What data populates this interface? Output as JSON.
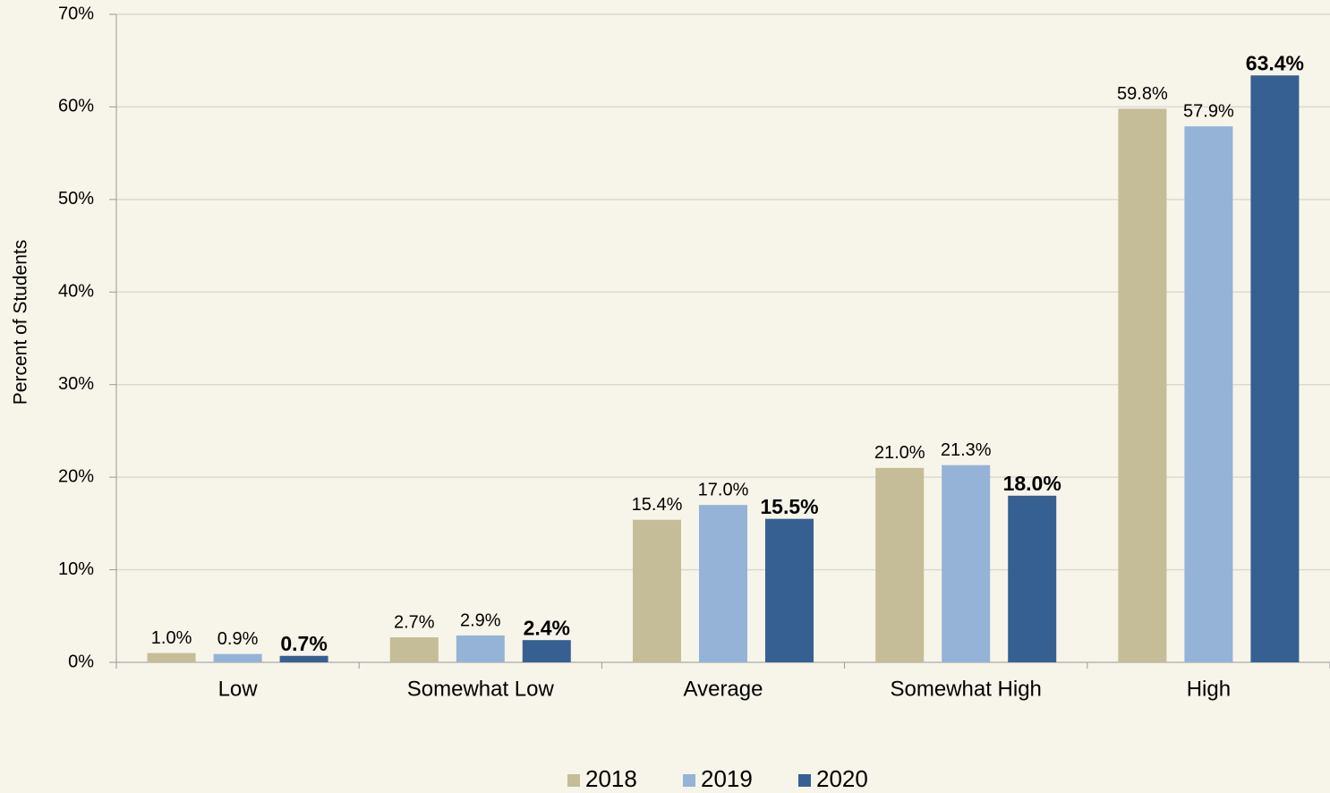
{
  "chart_data": {
    "type": "bar",
    "y_label": "Percent of Students",
    "categories": [
      "Low",
      "Somewhat Low",
      "Average",
      "Somewhat High",
      "High"
    ],
    "series": [
      {
        "name": "2018",
        "color": "#c4bd97",
        "values": [
          1.0,
          2.7,
          15.4,
          21.0,
          59.8
        ],
        "value_labels": [
          "1.0%",
          "2.7%",
          "15.4%",
          "21.0%",
          "59.8%"
        ]
      },
      {
        "name": "2019",
        "color": "#95b3d7",
        "values": [
          0.9,
          2.9,
          17.0,
          21.3,
          57.9
        ],
        "value_labels": [
          "0.9%",
          "2.9%",
          "17.0%",
          "21.3%",
          "57.9%"
        ]
      },
      {
        "name": "2020",
        "color": "#366092",
        "values": [
          0.7,
          2.4,
          15.5,
          18.0,
          63.4
        ],
        "value_labels": [
          "0.7%",
          "2.4%",
          "15.5%",
          "18.0%",
          "63.4%"
        ],
        "bold_labels": true
      }
    ],
    "ylim": [
      0,
      70
    ],
    "yticks": [
      {
        "value": 0,
        "label": "0%"
      },
      {
        "value": 10,
        "label": "10%"
      },
      {
        "value": 20,
        "label": "20%"
      },
      {
        "value": 30,
        "label": "30%"
      },
      {
        "value": 40,
        "label": "40%"
      },
      {
        "value": 50,
        "label": "50%"
      },
      {
        "value": 60,
        "label": "60%"
      },
      {
        "value": 70,
        "label": "70%"
      }
    ],
    "grid": true,
    "legend": "bottom"
  }
}
